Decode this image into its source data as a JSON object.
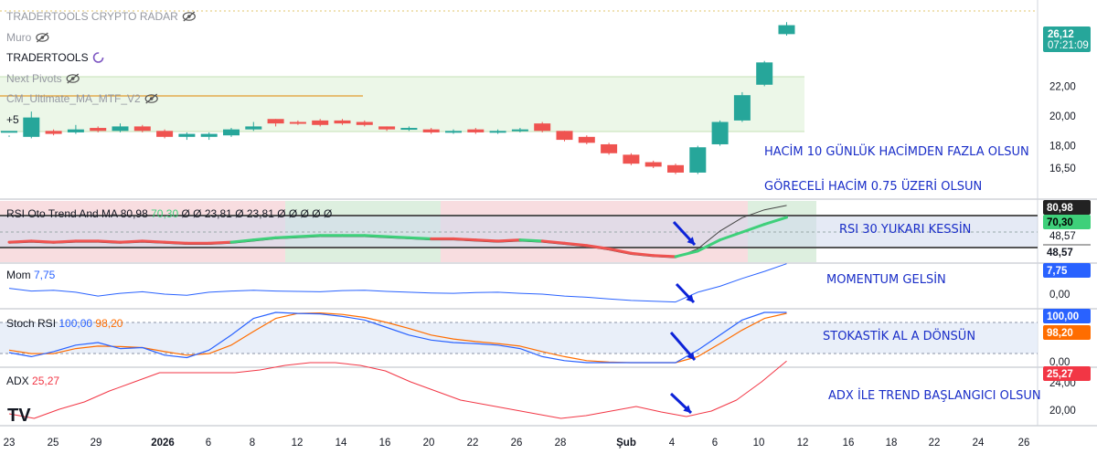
{
  "colors": {
    "up": "#26a69a",
    "down": "#ef5350",
    "rsi_line": "#3ed07a",
    "mom_line": "#2962ff",
    "stoch_k": "#2962ff",
    "stoch_d": "#ff6d00",
    "adx_line": "#f23645",
    "annotation": "#1a2ec8",
    "arrow": "#0d23d8"
  },
  "legend": {
    "main": [
      {
        "name": "TRADERTOOLS CRYPTO RADAR",
        "hidden": true
      },
      {
        "name": "Muro",
        "hidden": true
      },
      {
        "name": "TRADERTOOLS",
        "hidden": false
      },
      {
        "name": "Next Pivots",
        "hidden": true
      },
      {
        "name": "CM_Ultimate_MA_MTF_V2",
        "hidden": true
      }
    ],
    "more": "+5"
  },
  "price_badge": {
    "value": "26,12",
    "countdown": "07:21:09"
  },
  "annotations": {
    "hacim": "HACİM 10 GÜNLÜK HACİMDEN FAZLA OLSUN",
    "goreceli": "GÖRECELİ HACİM 0.75 ÜZERİ OLSUN",
    "rsi": "RSI 30 YUKARI KESSİN",
    "momentum": "MOMENTUM GELSİN",
    "stoch": "STOKASTİK AL A DÖNSÜN",
    "adx": "ADX İLE TREND BAŞLANGICI OLSUN"
  },
  "logo": "TV",
  "chart_data": [
    {
      "id": "main",
      "type": "candlestick",
      "y_ticks": [
        22,
        20,
        18,
        16.5
      ],
      "y_tick_labels": [
        "22,00",
        "20,00",
        "18,00",
        "16,50"
      ],
      "candles": [
        [
          19.0,
          19.0,
          18.7,
          18.6
        ],
        [
          18.6,
          19.9,
          20.3,
          18.5
        ],
        [
          19.0,
          18.8,
          19.1,
          18.7
        ],
        [
          18.9,
          19.1,
          19.4,
          18.8
        ],
        [
          19.2,
          19.0,
          19.3,
          18.9
        ],
        [
          19.0,
          19.3,
          19.5,
          18.9
        ],
        [
          19.3,
          19.0,
          19.4,
          18.9
        ],
        [
          19.0,
          18.6,
          19.1,
          18.5
        ],
        [
          18.6,
          18.8,
          18.9,
          18.4
        ],
        [
          18.6,
          18.8,
          18.9,
          18.4
        ],
        [
          18.7,
          19.1,
          19.2,
          18.6
        ],
        [
          19.1,
          19.3,
          19.6,
          19.0
        ],
        [
          19.8,
          19.5,
          19.8,
          19.3
        ],
        [
          19.6,
          19.5,
          19.7,
          19.4
        ],
        [
          19.7,
          19.4,
          19.8,
          19.3
        ],
        [
          19.7,
          19.5,
          19.8,
          19.4
        ],
        [
          19.6,
          19.4,
          19.7,
          19.3
        ],
        [
          19.3,
          19.1,
          19.3,
          19.0
        ],
        [
          19.1,
          19.2,
          19.3,
          19.0
        ],
        [
          19.1,
          18.9,
          19.2,
          18.8
        ],
        [
          18.9,
          19.0,
          19.1,
          18.8
        ],
        [
          19.1,
          18.9,
          19.2,
          18.8
        ],
        [
          18.9,
          19.0,
          19.1,
          18.8
        ],
        [
          19.0,
          19.1,
          19.2,
          18.9
        ],
        [
          19.5,
          19.0,
          19.6,
          18.9
        ],
        [
          19.0,
          18.4,
          19.0,
          18.3
        ],
        [
          18.6,
          18.2,
          18.7,
          18.1
        ],
        [
          18.1,
          17.5,
          18.2,
          17.4
        ],
        [
          17.4,
          16.8,
          17.5,
          16.7
        ],
        [
          16.9,
          16.6,
          17.0,
          16.5
        ],
        [
          16.7,
          16.2,
          16.8,
          16.1
        ],
        [
          16.2,
          17.9,
          18.0,
          16.1
        ],
        [
          18.1,
          19.6,
          19.7,
          18.0
        ],
        [
          19.7,
          21.4,
          21.6,
          19.6
        ],
        [
          22.1,
          23.6,
          23.7,
          22.0
        ],
        [
          25.5,
          26.1,
          26.3,
          25.4
        ]
      ]
    },
    {
      "id": "rsi",
      "type": "line",
      "title": "RSI Oto Trend And MA",
      "values_label": [
        "80,98",
        "70,30",
        "Ø",
        "Ø",
        "23,81",
        "Ø",
        "23,81",
        "Ø",
        "Ø",
        "Ø",
        "Ø",
        "Ø"
      ],
      "y_tick_labels": [
        "48,57"
      ],
      "badges": [
        "80,98",
        "70,30",
        "48,57"
      ],
      "series": [
        {
          "name": "RSI",
          "values": [
            48,
            49,
            48,
            49,
            49,
            48,
            49,
            48,
            47,
            47,
            48,
            50,
            52,
            53,
            54,
            54,
            54,
            53,
            52,
            51,
            51,
            50,
            49,
            50,
            49,
            47,
            45,
            42,
            38,
            36,
            35,
            40,
            50,
            57,
            64,
            70.3
          ]
        },
        {
          "name": "MA",
          "values": [
            47,
            48,
            47,
            48,
            48,
            47,
            48,
            47,
            46,
            46,
            47,
            49,
            51,
            52,
            53,
            53,
            53,
            52,
            51,
            50,
            50,
            49,
            48,
            49,
            48,
            46,
            44,
            41,
            37,
            35,
            34,
            42,
            58,
            70,
            77,
            80.98
          ]
        }
      ]
    },
    {
      "id": "mom",
      "type": "line",
      "title": "Mom",
      "value_label": "7,75",
      "y_tick_labels": [
        "0,00"
      ],
      "badge": "7,75",
      "series": [
        {
          "name": "Mom",
          "values": [
            1.5,
            0.8,
            1.0,
            0.5,
            -0.5,
            0.2,
            0.6,
            0.0,
            -0.3,
            0.5,
            0.8,
            1.0,
            0.8,
            0.7,
            0.6,
            0.9,
            1.0,
            0.7,
            0.5,
            0.3,
            0.2,
            0.4,
            0.5,
            0.2,
            0.0,
            -0.5,
            -0.8,
            -1.2,
            -1.6,
            -1.8,
            -2.0,
            0.5,
            2.0,
            4.0,
            5.8,
            7.75
          ]
        }
      ]
    },
    {
      "id": "stoch",
      "type": "line",
      "title": "Stoch RSI",
      "value_labels": [
        "100,00",
        "98,20"
      ],
      "y_tick_labels": [
        "0,00"
      ],
      "badges": [
        "100,00",
        "98,20"
      ],
      "series": [
        {
          "name": "K",
          "values": [
            20,
            12,
            22,
            35,
            40,
            28,
            30,
            15,
            10,
            25,
            55,
            88,
            100,
            98,
            97,
            92,
            85,
            70,
            55,
            45,
            40,
            38,
            35,
            28,
            12,
            4,
            0,
            0,
            0,
            0,
            0,
            25,
            55,
            85,
            100,
            100
          ]
        },
        {
          "name": "D",
          "values": [
            25,
            18,
            18,
            28,
            33,
            32,
            30,
            22,
            15,
            18,
            35,
            62,
            88,
            98,
            99,
            96,
            90,
            80,
            68,
            55,
            47,
            42,
            38,
            33,
            22,
            12,
            4,
            1,
            0,
            0,
            0,
            12,
            38,
            65,
            88,
            98.2
          ]
        }
      ]
    },
    {
      "id": "adx",
      "type": "line",
      "title": "ADX",
      "value_label": "25,27",
      "y_tick_labels": [
        "24,00",
        "20,00"
      ],
      "badge": "25,27",
      "series": [
        {
          "name": "ADX",
          "values": [
            19.5,
            19.0,
            20.0,
            20.8,
            22.0,
            23.0,
            24.0,
            24.0,
            24.0,
            24.0,
            24.3,
            24.8,
            25.1,
            25.1,
            24.8,
            24.2,
            23.0,
            22.0,
            21.0,
            20.5,
            20.0,
            19.5,
            19.0,
            19.3,
            19.8,
            20.3,
            19.7,
            19.2,
            19.8,
            21.0,
            23.0,
            25.27
          ]
        }
      ]
    }
  ],
  "x_axis": {
    "labels": [
      "23",
      "25",
      "29",
      "2026",
      "6",
      "8",
      "12",
      "14",
      "16",
      "20",
      "22",
      "26",
      "28",
      "Şub",
      "4",
      "6",
      "10",
      "12",
      "16",
      "18",
      "22",
      "24",
      "26"
    ]
  }
}
